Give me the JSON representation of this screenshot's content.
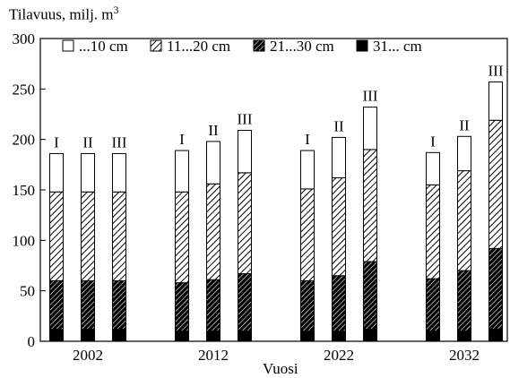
{
  "chart_data": {
    "type": "bar",
    "title": "",
    "ylabel": "Tilavuus, milj. m",
    "ylabel_superscript": "3",
    "xlabel": "Vuosi",
    "ylim": [
      0,
      300
    ],
    "yticks": [
      "0",
      "50",
      "100",
      "150",
      "200",
      "250",
      "300"
    ],
    "grid": false,
    "stacked": true,
    "legend_position": "top",
    "groups": [
      {
        "label": "2002",
        "bars": [
          {
            "label": "I",
            "values": [
              12,
              48,
              88,
              38
            ]
          },
          {
            "label": "II",
            "values": [
              12,
              48,
              88,
              38
            ]
          },
          {
            "label": "III",
            "values": [
              12,
              48,
              88,
              38
            ]
          }
        ]
      },
      {
        "label": "2012",
        "bars": [
          {
            "label": "I",
            "values": [
              10,
              48,
              90,
              41
            ]
          },
          {
            "label": "II",
            "values": [
              10,
              51,
              95,
              42
            ]
          },
          {
            "label": "III",
            "values": [
              10,
              57,
              100,
              42
            ]
          }
        ]
      },
      {
        "label": "2022",
        "bars": [
          {
            "label": "I",
            "values": [
              10,
              50,
              91,
              38
            ]
          },
          {
            "label": "II",
            "values": [
              10,
              55,
              97,
              40
            ]
          },
          {
            "label": "III",
            "values": [
              12,
              67,
              111,
              42
            ]
          }
        ]
      },
      {
        "label": "2032",
        "bars": [
          {
            "label": "I",
            "values": [
              10,
              52,
              93,
              32
            ]
          },
          {
            "label": "II",
            "values": [
              10,
              60,
              99,
              34
            ]
          },
          {
            "label": "III",
            "values": [
              12,
              80,
              127,
              38
            ]
          }
        ]
      }
    ],
    "series": [
      {
        "name": "31... cm",
        "pattern": "solid-black"
      },
      {
        "name": "21...30 cm",
        "pattern": "dense-hatch"
      },
      {
        "name": "11...20 cm",
        "pattern": "light-hatch"
      },
      {
        "name": "...10 cm",
        "pattern": "white"
      }
    ],
    "legend_order": [
      "...10 cm",
      "11...20 cm",
      "21...30 cm",
      "31... cm"
    ]
  }
}
